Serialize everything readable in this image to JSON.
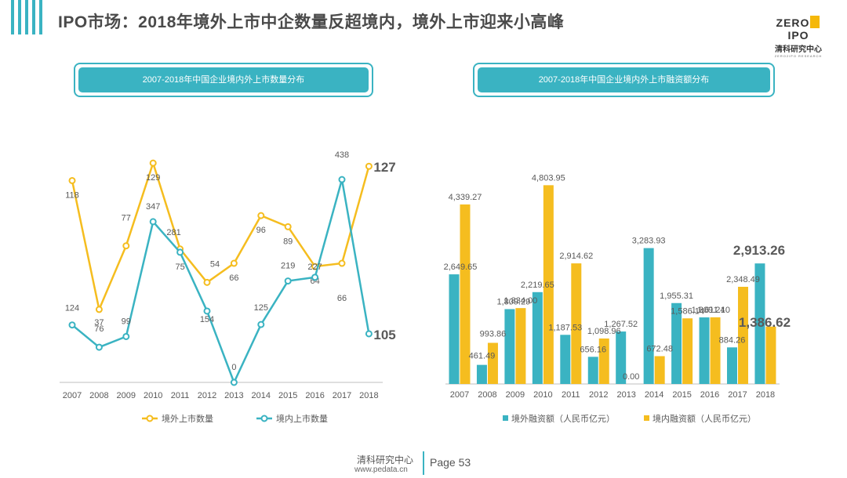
{
  "header": {
    "title": "IPO市场：2018年境外上市中企数量反超境内，境外上市迎来小高峰",
    "logo_main_left": "ZERO",
    "logo_main_right": "IPO",
    "logo_sub": "清科研究中心",
    "logo_tiny": "ZERO2IPO RESEARCH"
  },
  "colors": {
    "accent": "#3ab3c2",
    "series_yellow": "#f5bd1f",
    "series_teal": "#3ab3c2",
    "text_gray": "#595959",
    "axis": "#bfbfbf"
  },
  "footer": {
    "name": "清科研究中心",
    "url": "www.pedata.cn",
    "page": "Page 53"
  },
  "chart_data": [
    {
      "type": "line",
      "title": "2007-2018年中国企业境内外上市数量分布",
      "categories": [
        "2007",
        "2008",
        "2009",
        "2010",
        "2011",
        "2012",
        "2013",
        "2014",
        "2015",
        "2016",
        "2017",
        "2018"
      ],
      "series": [
        {
          "name": "境外上市数量",
          "color": "#f5bd1f",
          "values": [
            118,
            37,
            77,
            129,
            75,
            54,
            66,
            96,
            89,
            64,
            66,
            127
          ]
        },
        {
          "name": "境内上市数量",
          "color": "#3ab3c2",
          "values": [
            124,
            76,
            99,
            347,
            281,
            154,
            0,
            125,
            219,
            227,
            438,
            105
          ]
        }
      ],
      "legend_position": "bottom",
      "grid": false
    },
    {
      "type": "bar",
      "title": "2007-2018年中国企业境内外上市融资额分布",
      "categories": [
        "2007",
        "2008",
        "2009",
        "2010",
        "2011",
        "2012",
        "2013",
        "2014",
        "2015",
        "2016",
        "2017",
        "2018"
      ],
      "series": [
        {
          "name": "境外融资额（人民币亿元）",
          "color": "#3ab3c2",
          "values": [
            2649.65,
            461.49,
            1809.29,
            2219.65,
            1187.53,
            656.16,
            1267.52,
            3283.93,
            1955.31,
            1609.24,
            884.26,
            2913.26
          ]
        },
        {
          "name": "境内融资额（人民币亿元）",
          "color": "#f5bd1f",
          "values": [
            4339.27,
            993.86,
            1834.0,
            4803.95,
            2914.62,
            1098.96,
            0.0,
            672.48,
            1586.14,
            1611.1,
            2348.49,
            1386.62
          ]
        }
      ],
      "value_labels": [
        [
          "2,649.65",
          "461.49",
          "1,809.29",
          "2,219.65",
          "1,187.53",
          "656.16",
          "1,267.52",
          "3,283.93",
          "1,955.31",
          "1,609.24",
          "884.26",
          "2,913.26"
        ],
        [
          "4,339.27",
          "993.86",
          "1,834.00",
          "4,803.95",
          "2,914.62",
          "1,098.96",
          "0.00",
          "672.48",
          "1,586.14",
          "1,611.10",
          "2,348.49",
          "1,386.62"
        ]
      ],
      "ylim": [
        0,
        5000
      ],
      "legend_position": "bottom",
      "grid": false
    }
  ]
}
